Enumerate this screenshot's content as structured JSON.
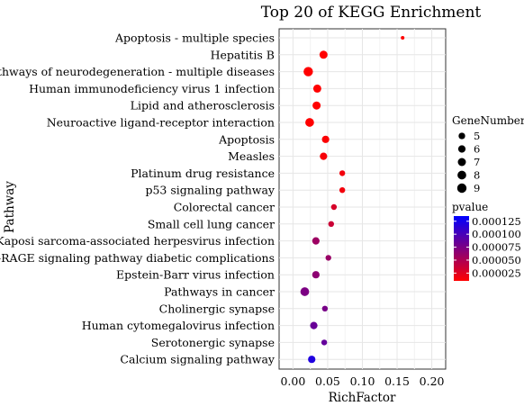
{
  "chart_data": {
    "type": "scatter",
    "title": "Top 20 of KEGG Enrichment",
    "xlabel": "RichFactor",
    "ylabel": "Pathway",
    "xlim": [
      -0.02,
      0.22
    ],
    "x_ticks": [
      0.0,
      0.05,
      0.1,
      0.15,
      0.2
    ],
    "x_tick_labels": [
      "0.00",
      "0.05",
      "0.10",
      "0.15",
      "0.20"
    ],
    "grid": true,
    "legend_placement": "right",
    "size_legend": {
      "title": "GeneNumber",
      "values": [
        5,
        6,
        7,
        8,
        9
      ],
      "labels": [
        "5",
        "6",
        "7",
        "8",
        "9"
      ]
    },
    "color_legend": {
      "title": "pvalue",
      "range": [
        1e-05,
        0.000135
      ],
      "ticks": [
        0.000125,
        0.0001,
        7.5e-05,
        5e-05,
        2.5e-05
      ],
      "tick_labels": [
        "0.000125",
        "0.000100",
        "0.000075",
        "0.000050",
        "0.000025"
      ],
      "low_color": "#ff0000",
      "high_color": "#0000ff"
    },
    "points": [
      {
        "pathway": "Apoptosis - multiple species",
        "rich_factor": 0.158,
        "gene_number": 2,
        "pvalue": 5e-06
      },
      {
        "pathway": "Hepatitis B",
        "rich_factor": 0.044,
        "gene_number": 7,
        "pvalue": 6e-06
      },
      {
        "pathway": "Pathways of neurodegeneration - multiple diseases",
        "rich_factor": 0.022,
        "gene_number": 9,
        "pvalue": 6e-06
      },
      {
        "pathway": "Human immunodeficiency virus 1 infection",
        "rich_factor": 0.035,
        "gene_number": 7,
        "pvalue": 9e-06
      },
      {
        "pathway": "Lipid and atherosclerosis",
        "rich_factor": 0.034,
        "gene_number": 7,
        "pvalue": 9e-06
      },
      {
        "pathway": "Neuroactive ligand-receptor interaction",
        "rich_factor": 0.024,
        "gene_number": 8,
        "pvalue": 1e-05
      },
      {
        "pathway": "Apoptosis",
        "rich_factor": 0.047,
        "gene_number": 6,
        "pvalue": 1.2e-05
      },
      {
        "pathway": "Measles",
        "rich_factor": 0.044,
        "gene_number": 6,
        "pvalue": 1.4e-05
      },
      {
        "pathway": "Platinum drug resistance",
        "rich_factor": 0.071,
        "gene_number": 4,
        "pvalue": 1.6e-05
      },
      {
        "pathway": "p53 signaling pathway",
        "rich_factor": 0.071,
        "gene_number": 4,
        "pvalue": 1.6e-05
      },
      {
        "pathway": "Colorectal cancer",
        "rich_factor": 0.059,
        "gene_number": 4,
        "pvalue": 3e-05
      },
      {
        "pathway": "Small cell lung cancer",
        "rich_factor": 0.055,
        "gene_number": 4,
        "pvalue": 3.6e-05
      },
      {
        "pathway": "Kaposi sarcoma-associated herpesvirus infection",
        "rich_factor": 0.033,
        "gene_number": 6,
        "pvalue": 5.8e-05
      },
      {
        "pathway": "AGE-RAGE signaling pathway diabetic complications",
        "rich_factor": 0.051,
        "gene_number": 4,
        "pvalue": 6e-05
      },
      {
        "pathway": "Epstein-Barr virus infection",
        "rich_factor": 0.033,
        "gene_number": 6,
        "pvalue": 6.6e-05
      },
      {
        "pathway": "Pathways in cancer",
        "rich_factor": 0.017,
        "gene_number": 8,
        "pvalue": 7.4e-05
      },
      {
        "pathway": "Cholinergic synapse",
        "rich_factor": 0.046,
        "gene_number": 4,
        "pvalue": 7.6e-05
      },
      {
        "pathway": "Human cytomegalovirus infection",
        "rich_factor": 0.03,
        "gene_number": 6,
        "pvalue": 8.4e-05
      },
      {
        "pathway": "Serotonergic synapse",
        "rich_factor": 0.045,
        "gene_number": 4,
        "pvalue": 8.6e-05
      },
      {
        "pathway": "Calcium signaling pathway",
        "rich_factor": 0.027,
        "gene_number": 6,
        "pvalue": 0.00012
      }
    ]
  }
}
